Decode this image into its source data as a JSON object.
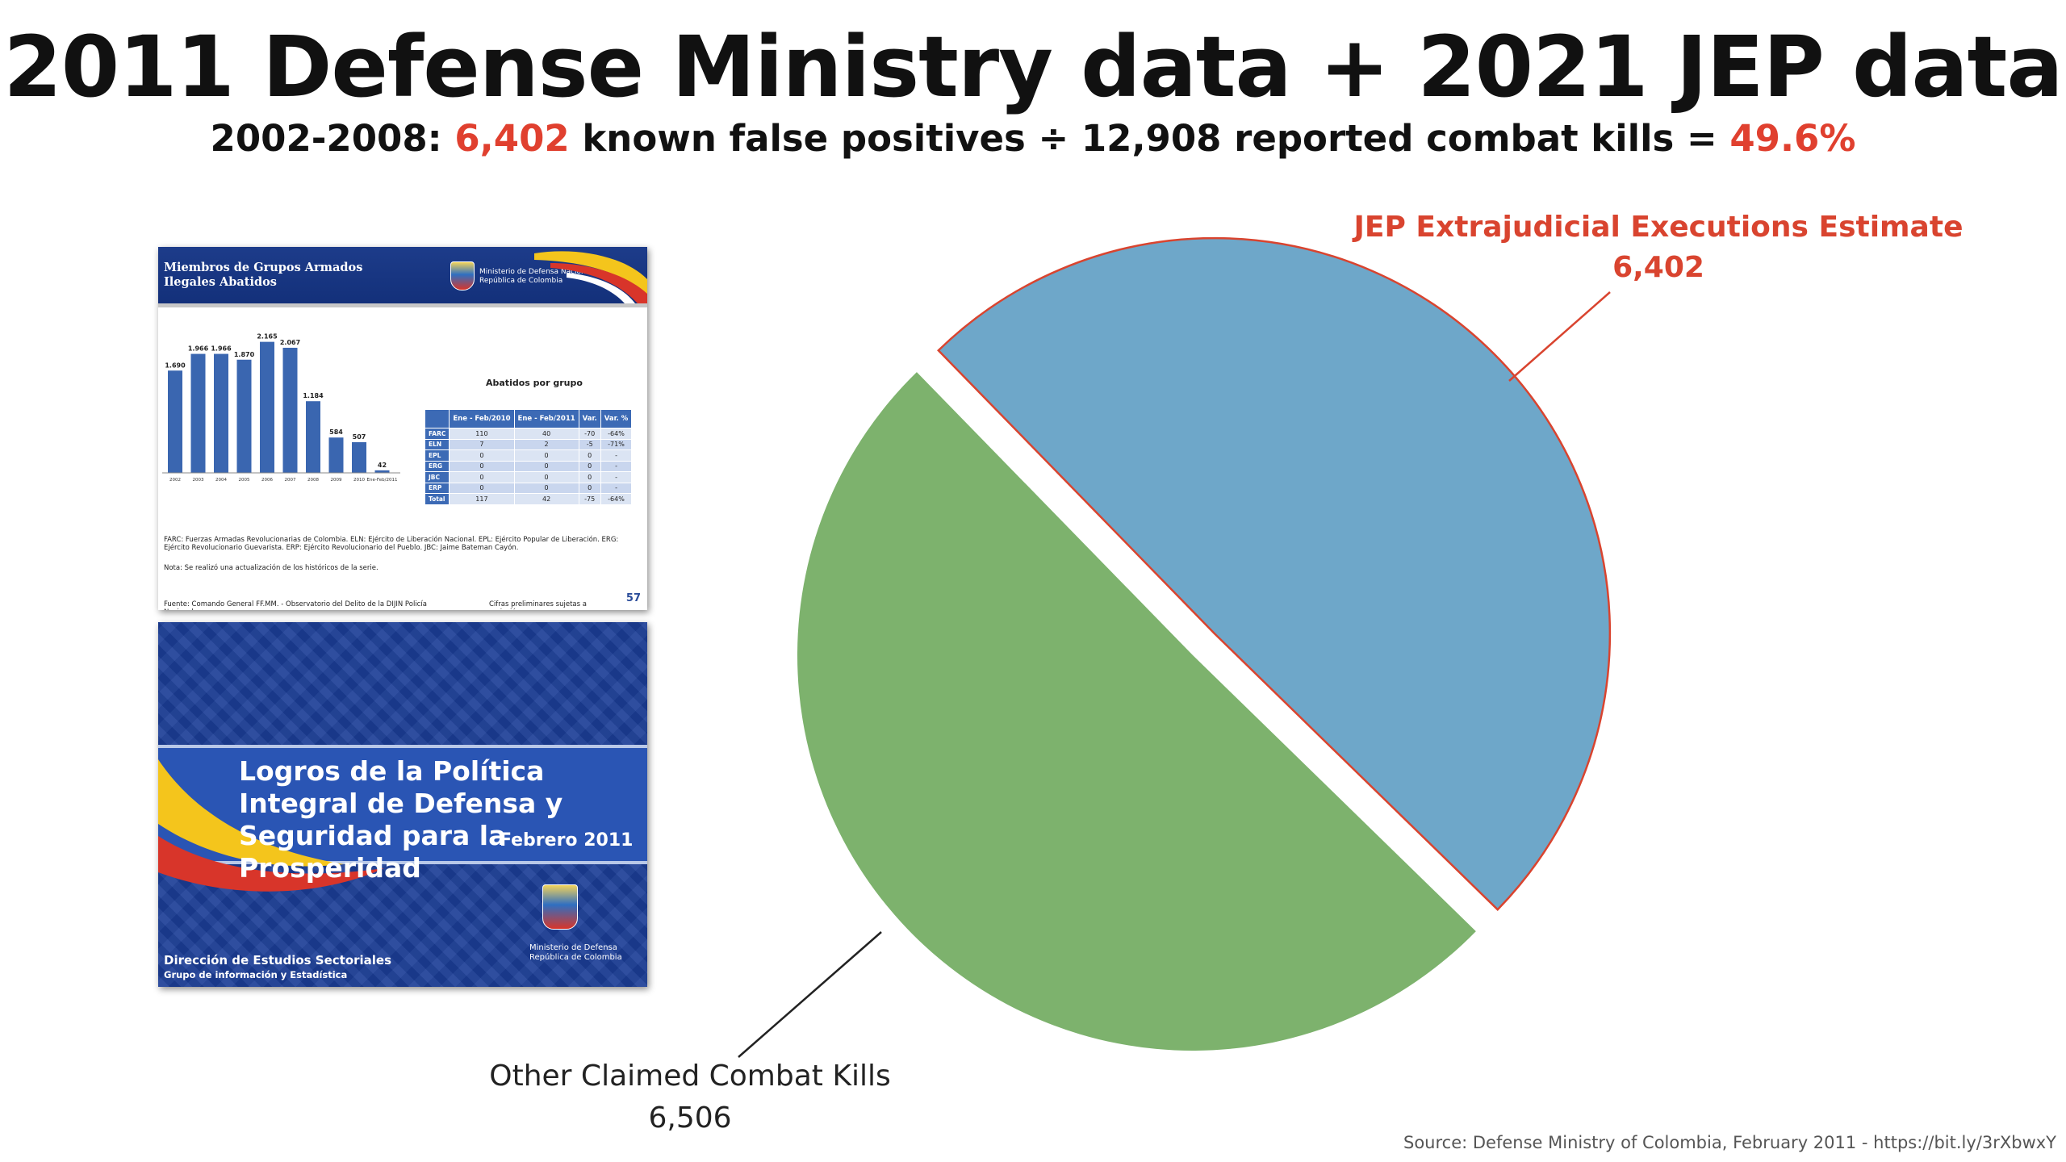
{
  "header": {
    "title": "2011 Defense Ministry data + 2021 JEP data",
    "subtitle_prefix": "2002-2008:",
    "subtitle_num1": "6,402",
    "subtitle_mid": "known false positives ÷ 12,908 reported combat kills =",
    "subtitle_pct": "49.6%"
  },
  "chart_data": {
    "type": "pie",
    "slices": [
      {
        "name": "JEP Extrajudicial Executions Estimate",
        "value": 6402,
        "value_label": "6,402",
        "color": "#6ea7c9",
        "exploded": true
      },
      {
        "name": "Other Claimed Combat Kills",
        "value": 6506,
        "value_label": "6,506",
        "color": "#7db26d",
        "exploded": false
      }
    ],
    "colors": {
      "highlight_outline": "#d9442f",
      "label_highlight": "#d9442f"
    }
  },
  "slide1": {
    "title_line1": "Miembros de Grupos Armados",
    "title_line2": "Ilegales Abatidos",
    "ministry_line1": "Ministerio de Defensa Nacional",
    "ministry_line2": "República de Colombia",
    "bars": {
      "categories": [
        "2002",
        "2003",
        "2004",
        "2005",
        "2006",
        "2007",
        "2008",
        "2009",
        "2010",
        "Ene-Feb/2011"
      ],
      "values": [
        1690,
        1966,
        1966,
        1870,
        2165,
        2067,
        1184,
        584,
        507,
        42
      ],
      "labels": [
        "1.690",
        "1.966",
        "1.966",
        "1.870",
        "2.165",
        "2.067",
        "1.184",
        "584",
        "507",
        "42"
      ]
    },
    "table_title": "Abatidos por grupo",
    "table_header": [
      "",
      "Ene - Feb/2010",
      "Ene - Feb/2011",
      "Var.",
      "Var. %"
    ],
    "table_rows": [
      [
        "FARC",
        "110",
        "40",
        "-70",
        "-64%"
      ],
      [
        "ELN",
        "7",
        "2",
        "-5",
        "-71%"
      ],
      [
        "EPL",
        "0",
        "0",
        "0",
        "-"
      ],
      [
        "ERG",
        "0",
        "0",
        "0",
        "-"
      ],
      [
        "JBC",
        "0",
        "0",
        "0",
        "-"
      ],
      [
        "ERP",
        "0",
        "0",
        "0",
        "-"
      ],
      [
        "Total",
        "117",
        "42",
        "-75",
        "-64%"
      ]
    ],
    "footnote1": "FARC: Fuerzas Armadas Revolucionarias de Colombia. ELN: Ejército de Liberación Nacional. EPL: Ejército Popular de Liberación. ERG: Ejército Revolucionario Guevarista. ERP: Ejército Revolucionario del Pueblo. JBC: Jaime Bateman Cayón.",
    "note": "Nota: Se realizó una actualización de los históricos de la serie.",
    "source": "Fuente: Comando General FF.MM. - Observatorio del Delito de la DIJIN Policía Nacional.",
    "prelim": "Cifras preliminares sujetas a variación.",
    "page": "57"
  },
  "slide2": {
    "title": "Logros de la Política Integral de Defensa y Seguridad para la Prosperidad",
    "date": "Febrero 2011",
    "directorate": "Dirección de Estudios Sectoriales",
    "group": "Grupo de información y Estadística",
    "ministry_line1": "Ministerio de Defensa",
    "ministry_line2": "República de Colombia"
  },
  "footer": {
    "source": "Source: Defense Ministry of Colombia, February 2011 - https://bit.ly/3rXbwxY"
  }
}
